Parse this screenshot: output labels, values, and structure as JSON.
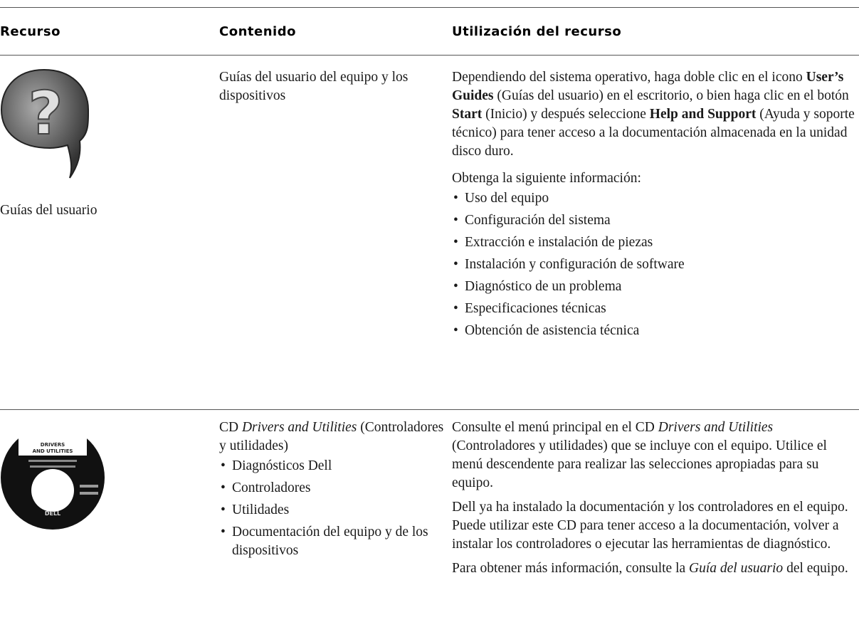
{
  "table": {
    "headers": [
      "Recurso",
      "Contenido",
      "Utilización del recurso"
    ],
    "rows": [
      {
        "resource": "Guías del usuario",
        "content": [
          "Guías del usuario del equipo y los dispositivos"
        ],
        "usage": {
          "paragraphs": [
            [
              "Dependiendo del sistema operativo, haga doble clic en el icono ",
              "User’s Guides",
              " (Guías del usuario) en el escritorio, o bien haga clic en el botón ",
              "Start",
              " (Inicio) y después seleccione ",
              "Help and Support",
              " (Ayuda y soporte técnico) para tener acceso a la documentación almacenada en la unidad disco duro."
            ],
            [
              "Obtenga la siguiente información:"
            ]
          ],
          "bullets": [
            "Uso del equipo",
            "Configuración del sistema",
            "Extracción e instalación de piezas",
            "Instalación y configuración de software",
            "Diagnóstico de un problema",
            "Especificaciones técnicas",
            "Obtención de asistencia técnica"
          ]
        }
      },
      {
        "image_labels": [
          "DRIVERS",
          "AND UTILITIES",
          "DELL"
        ],
        "content": [
          "CD ",
          "Drivers and Utilities",
          " (Controladores y utilidades)"
        ],
        "content_bullets": [
          "Diagnósticos Dell",
          "Controladores",
          "Utilidades",
          "Documentación del equipo y de los dispositivos"
        ],
        "usage": {
          "paragraphs": [
            [
              "Consulte el menú principal en el CD ",
              "Drivers and Utilities",
              " (Controladores y utilidades) que se incluye con el equipo. Utilice el menú descendente para realizar las selecciones apropiadas para su equipo."
            ],
            [
              "Dell ya ha instalado la documentación y los controladores en el equipo. Puede utilizar este CD para tener acceso a la documentación, volver a instalar los controladores o ejecutar las herramientas de diagnóstico."
            ],
            [
              "Para obtener más información, consulte la ",
              "Guía del usuario",
              " del equipo."
            ]
          ]
        }
      }
    ]
  }
}
